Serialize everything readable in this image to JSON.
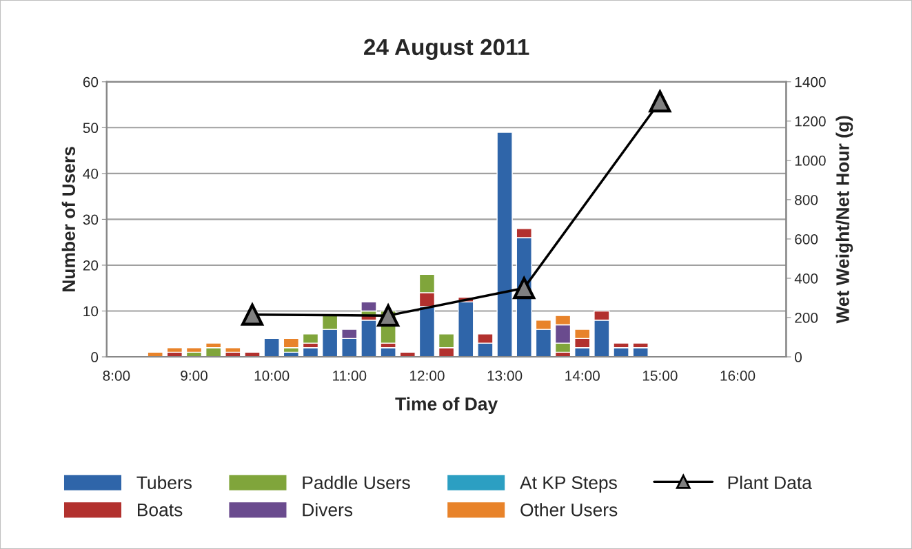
{
  "chart_data": {
    "type": "bar",
    "title": "24 August 2011",
    "xlabel": "Time of Day",
    "ylabel": "Number of Users",
    "y2label": "Wet Weight/Net Hour (g)",
    "categories": [
      "8:00",
      null,
      null,
      null,
      "9:00",
      null,
      null,
      null,
      "10:00",
      null,
      null,
      null,
      "11:00",
      null,
      null,
      null,
      "12:00",
      null,
      null,
      null,
      "13:00",
      null,
      null,
      null,
      "14:00",
      null,
      null,
      null,
      "15:00",
      null,
      null,
      null,
      "16:00",
      null,
      null
    ],
    "stacked": true,
    "series": [
      {
        "name": "Tubers",
        "color": "#2f65a9",
        "values": [
          null,
          null,
          null,
          null,
          null,
          null,
          null,
          null,
          4,
          1,
          2,
          6,
          4,
          8,
          2,
          null,
          11,
          null,
          12,
          3,
          49,
          26,
          6,
          null,
          2,
          8,
          2,
          2,
          null,
          null,
          null,
          null,
          null,
          null,
          null
        ]
      },
      {
        "name": "Boats",
        "color": "#b2312e",
        "values": [
          null,
          null,
          null,
          1,
          null,
          null,
          1,
          1,
          null,
          null,
          1,
          null,
          null,
          1,
          1,
          1,
          3,
          2,
          1,
          2,
          null,
          2,
          null,
          1,
          2,
          2,
          1,
          1,
          null,
          null,
          null,
          null,
          null,
          null,
          null
        ]
      },
      {
        "name": "Paddle Users",
        "color": "#80a53b",
        "values": [
          null,
          null,
          null,
          null,
          1,
          2,
          null,
          null,
          null,
          1,
          2,
          3,
          null,
          1,
          7,
          null,
          4,
          3,
          null,
          null,
          null,
          null,
          null,
          2,
          null,
          null,
          null,
          null,
          null,
          null,
          null,
          null,
          null,
          null,
          null
        ]
      },
      {
        "name": "Divers",
        "color": "#6a4b8e",
        "values": [
          null,
          null,
          null,
          null,
          null,
          null,
          null,
          null,
          null,
          null,
          null,
          null,
          2,
          2,
          null,
          null,
          null,
          null,
          null,
          null,
          null,
          null,
          null,
          4,
          null,
          null,
          null,
          null,
          null,
          null,
          null,
          null,
          null,
          null,
          null
        ]
      },
      {
        "name": "At KP Steps",
        "color": "#2c9fc2",
        "values": [
          null,
          null,
          null,
          null,
          null,
          null,
          null,
          null,
          null,
          null,
          null,
          null,
          null,
          null,
          null,
          null,
          null,
          null,
          null,
          null,
          null,
          null,
          null,
          null,
          null,
          null,
          null,
          null,
          null,
          null,
          null,
          null,
          null,
          null,
          null
        ]
      },
      {
        "name": "Other Users",
        "color": "#e8832a",
        "values": [
          null,
          null,
          1,
          1,
          1,
          1,
          1,
          null,
          null,
          2,
          null,
          null,
          null,
          null,
          null,
          null,
          null,
          null,
          null,
          null,
          null,
          null,
          2,
          2,
          2,
          null,
          null,
          null,
          null,
          null,
          null,
          null,
          null,
          null,
          null
        ]
      },
      {
        "name": "Plant Data",
        "type": "line",
        "axis": "y2",
        "color": "#000000",
        "marker": "triangle",
        "values": [
          null,
          null,
          null,
          null,
          null,
          null,
          null,
          215,
          null,
          null,
          null,
          null,
          null,
          null,
          210,
          null,
          null,
          null,
          null,
          null,
          null,
          350,
          null,
          null,
          null,
          null,
          null,
          null,
          1300,
          null,
          null,
          null,
          null,
          null,
          null
        ]
      }
    ],
    "ylim": [
      0,
      60
    ],
    "yticks": [
      0,
      10,
      20,
      30,
      40,
      50,
      60
    ],
    "y2lim": [
      0,
      1400
    ],
    "y2ticks": [
      0,
      200,
      400,
      600,
      800,
      1000,
      1200,
      1400
    ],
    "grid": "y",
    "legend": "bottom"
  }
}
